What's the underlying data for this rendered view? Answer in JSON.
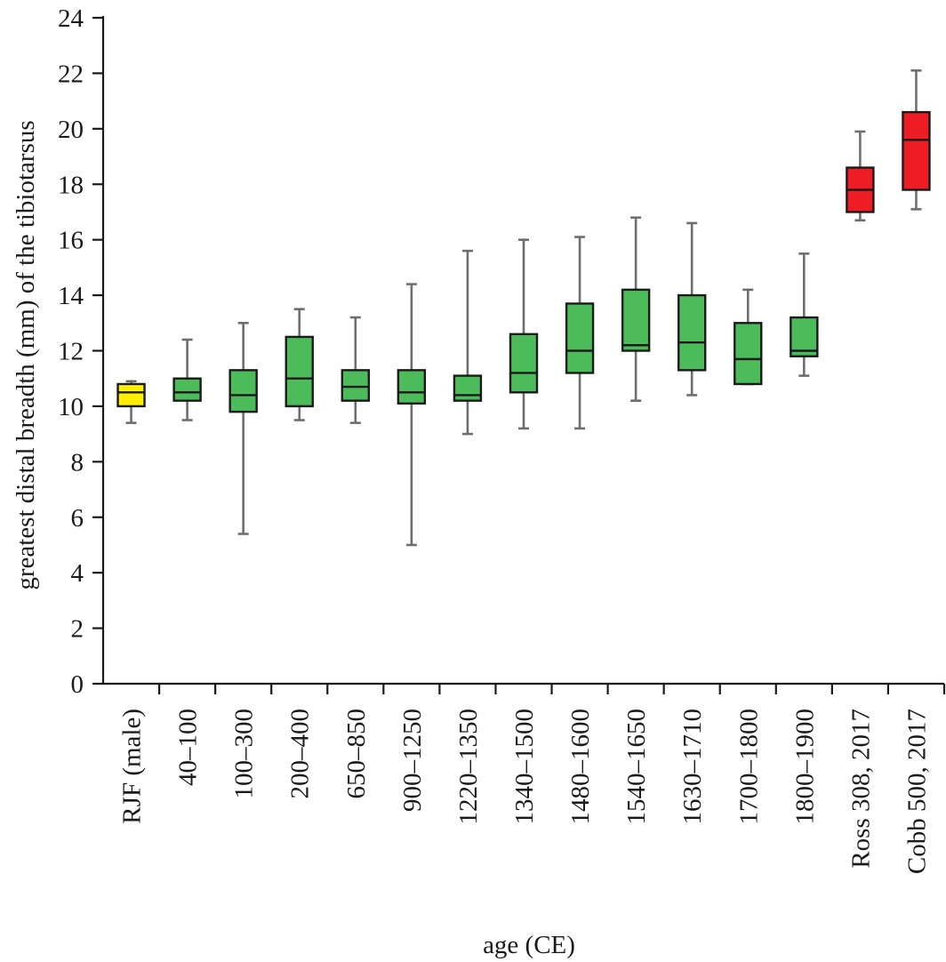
{
  "chart_data": {
    "type": "box",
    "xlabel": "age (CE)",
    "ylabel": "greatest distal breadth (mm) of the tibiotarsus",
    "ylim": [
      0,
      24
    ],
    "yticks": [
      "0",
      "2",
      "4",
      "6",
      "8",
      "10",
      "12",
      "14",
      "16",
      "18",
      "20",
      "22",
      "24"
    ],
    "grid": false,
    "colors": {
      "yellow": "#ffee00",
      "green": "#4cbb5a",
      "red": "#ee1c24"
    },
    "categories": [
      {
        "label": "RJF (male)",
        "min": 9.4,
        "q1": 10.0,
        "median": 10.5,
        "q3": 10.8,
        "max": 10.9,
        "color": "#ffee00"
      },
      {
        "label": "40–100",
        "min": 9.5,
        "q1": 10.2,
        "median": 10.5,
        "q3": 11.0,
        "max": 12.4,
        "color": "#4cbb5a"
      },
      {
        "label": "100–300",
        "min": 5.4,
        "q1": 9.8,
        "median": 10.4,
        "q3": 11.3,
        "max": 13.0,
        "color": "#4cbb5a"
      },
      {
        "label": "200–400",
        "min": 9.5,
        "q1": 10.0,
        "median": 11.0,
        "q3": 12.5,
        "max": 13.5,
        "color": "#4cbb5a"
      },
      {
        "label": "650–850",
        "min": 9.4,
        "q1": 10.2,
        "median": 10.7,
        "q3": 11.3,
        "max": 13.2,
        "color": "#4cbb5a"
      },
      {
        "label": "900–1250",
        "min": 5.0,
        "q1": 10.1,
        "median": 10.5,
        "q3": 11.3,
        "max": 14.4,
        "color": "#4cbb5a"
      },
      {
        "label": "1220–1350",
        "min": 9.0,
        "q1": 10.2,
        "median": 10.4,
        "q3": 11.1,
        "max": 15.6,
        "color": "#4cbb5a"
      },
      {
        "label": "1340–1500",
        "min": 9.2,
        "q1": 10.5,
        "median": 11.2,
        "q3": 12.6,
        "max": 16.0,
        "color": "#4cbb5a"
      },
      {
        "label": "1480–1600",
        "min": 9.2,
        "q1": 11.2,
        "median": 12.0,
        "q3": 13.7,
        "max": 16.1,
        "color": "#4cbb5a"
      },
      {
        "label": "1540–1650",
        "min": 10.2,
        "q1": 12.0,
        "median": 12.2,
        "q3": 14.2,
        "max": 16.8,
        "color": "#4cbb5a"
      },
      {
        "label": "1630–1710",
        "min": 10.4,
        "q1": 11.3,
        "median": 12.3,
        "q3": 14.0,
        "max": 16.6,
        "color": "#4cbb5a"
      },
      {
        "label": "1700–1800",
        "min": 10.8,
        "q1": 10.8,
        "median": 11.7,
        "q3": 13.0,
        "max": 14.2,
        "color": "#4cbb5a"
      },
      {
        "label": "1800–1900",
        "min": 11.1,
        "q1": 11.8,
        "median": 12.0,
        "q3": 13.2,
        "max": 15.5,
        "color": "#4cbb5a"
      },
      {
        "label": "Ross 308, 2017",
        "min": 16.7,
        "q1": 17.0,
        "median": 17.8,
        "q3": 18.6,
        "max": 19.9,
        "color": "#ee1c24"
      },
      {
        "label": "Cobb 500, 2017",
        "min": 17.1,
        "q1": 17.8,
        "median": 19.6,
        "q3": 20.6,
        "max": 22.1,
        "color": "#ee1c24"
      }
    ]
  }
}
